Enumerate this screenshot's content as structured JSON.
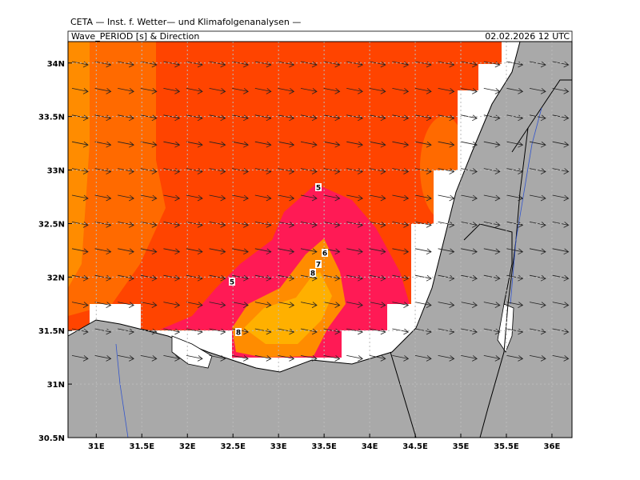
{
  "header": {
    "title": "CETA — Inst. f. Wetter— und Klimafolgenanalysen —",
    "field": "Wave_PERIOD [s] & Direction",
    "valid_time": "02.02.2026 12 UTC"
  },
  "map": {
    "xlim": [
      30.69,
      36.22
    ],
    "ylim": [
      30.5,
      34.2
    ],
    "xticks": [
      {
        "value": 31,
        "label": "31E"
      },
      {
        "value": 31.5,
        "label": "31.5E"
      },
      {
        "value": 32,
        "label": "32E"
      },
      {
        "value": 32.5,
        "label": "32.5E"
      },
      {
        "value": 33,
        "label": "33E"
      },
      {
        "value": 33.5,
        "label": "33.5E"
      },
      {
        "value": 34,
        "label": "34E"
      },
      {
        "value": 34.5,
        "label": "34.5E"
      },
      {
        "value": 35,
        "label": "35E"
      },
      {
        "value": 35.5,
        "label": "35.5E"
      },
      {
        "value": 36,
        "label": "36E"
      }
    ],
    "yticks": [
      {
        "value": 30.5,
        "label": "30.5N"
      },
      {
        "value": 31,
        "label": "31N"
      },
      {
        "value": 31.5,
        "label": "31.5N"
      },
      {
        "value": 32,
        "label": "32N"
      },
      {
        "value": 32.5,
        "label": "32.5N"
      },
      {
        "value": 33,
        "label": "33N"
      },
      {
        "value": 33.5,
        "label": "33.5N"
      },
      {
        "value": 34,
        "label": "34N"
      }
    ],
    "contour_labels": [
      "5",
      "6",
      "7",
      "8",
      "5",
      "8"
    ]
  }
}
